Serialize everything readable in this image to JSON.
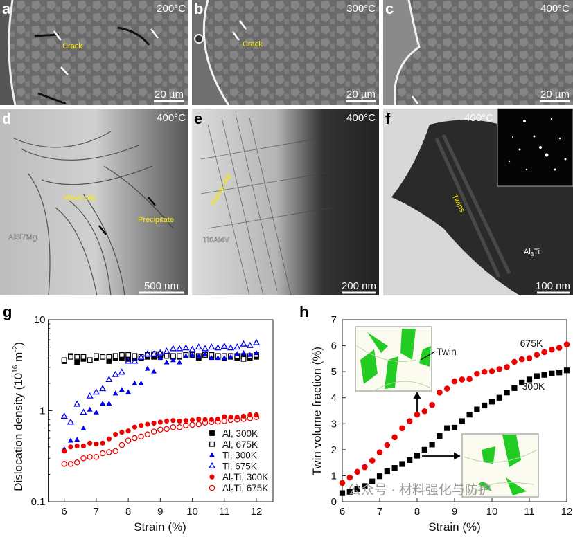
{
  "panels": {
    "a": {
      "letter": "a",
      "temp": "200°C",
      "annotation": "Crack",
      "scale": "20 µm"
    },
    "b": {
      "letter": "b",
      "temp": "300°C",
      "annotation": "Crack",
      "scale": "20 µm"
    },
    "c": {
      "letter": "c",
      "temp": "400°C",
      "scale": "20 µm"
    },
    "d": {
      "letter": "d",
      "temp": "400°C",
      "annotation1": "Wavy slip",
      "annotation2": "Precipitate",
      "material": "AlSi7Mg",
      "scale": "500 nm"
    },
    "e": {
      "letter": "e",
      "temp": "400°C",
      "annotation": "Planar slip",
      "material": "Ti6Al4V",
      "scale": "200 nm"
    },
    "f": {
      "letter": "f",
      "temp": "400°C",
      "annotation": "Twins",
      "material": "Al3Ti",
      "scale": "100 nm"
    }
  },
  "watermark": "公众号 · 材料强化与防护",
  "chart_data": [
    {
      "panel": "g",
      "type": "scatter",
      "xlabel": "Strain (%)",
      "ylabel": "Dislocation density (10^16 m^-2)",
      "yscale": "log",
      "xlim": [
        5.5,
        12.5
      ],
      "ylim": [
        0.1,
        10
      ],
      "xticks": [
        "6",
        "7",
        "8",
        "9",
        "10",
        "11",
        "12"
      ],
      "yticks": [
        "0.1",
        "1",
        "10"
      ],
      "legend": "bottom-right",
      "x": [
        6,
        6.2,
        6.4,
        6.6,
        6.8,
        7,
        7.2,
        7.4,
        7.6,
        7.8,
        8,
        8.2,
        8.4,
        8.6,
        8.8,
        9,
        9.2,
        9.4,
        9.6,
        9.8,
        10,
        10.2,
        10.4,
        10.6,
        10.8,
        11,
        11.2,
        11.4,
        11.6,
        11.8,
        12
      ],
      "series": [
        {
          "name": "Al, 300K",
          "marker": "square",
          "filled": true,
          "color": "#000000",
          "values": [
            3.5,
            4.0,
            3.4,
            3.7,
            3.6,
            3.8,
            3.9,
            3.5,
            3.8,
            3.8,
            3.7,
            3.8,
            3.8,
            3.9,
            3.9,
            4.0,
            4.0,
            3.9,
            3.9,
            4.1,
            4.1,
            3.8,
            4.1,
            3.9,
            3.9,
            3.8,
            3.9,
            3.8,
            4.0,
            3.8,
            3.9
          ]
        },
        {
          "name": "Al, 675K",
          "marker": "square",
          "filled": false,
          "color": "#000000",
          "values": [
            3.6,
            3.9,
            3.9,
            3.9,
            3.6,
            4.0,
            3.9,
            3.9,
            4.0,
            4.1,
            4.1,
            4.0,
            3.9,
            4.1,
            4.2,
            4.2,
            4.0,
            4.0,
            4.0,
            4.1,
            4.1,
            4.0,
            4.1,
            4.1,
            4.0,
            4.0,
            4.0,
            4.0,
            3.7,
            4.0,
            4.1
          ]
        },
        {
          "name": "Ti, 300K",
          "marker": "triangle",
          "filled": true,
          "color": "#0000ee",
          "values": [
            0.38,
            0.47,
            0.48,
            0.64,
            1.03,
            0.96,
            1.2,
            1.2,
            1.55,
            1.7,
            1.6,
            2.0,
            2.0,
            2.9,
            2.7,
            3.8,
            3.4,
            3.6,
            3.4,
            4.0,
            4.1,
            4.0,
            4.2,
            3.8,
            3.8,
            3.8,
            3.9,
            4.2,
            4.3,
            4.1,
            4.3
          ]
        },
        {
          "name": "Ti, 675K",
          "marker": "triangle",
          "filled": false,
          "color": "#0000ee",
          "values": [
            0.87,
            0.75,
            1.18,
            0.96,
            1.45,
            1.6,
            1.75,
            2.2,
            2.5,
            2.65,
            3.5,
            3.5,
            3.85,
            4.2,
            4.2,
            4.3,
            4.5,
            4.8,
            4.8,
            4.9,
            4.7,
            5.0,
            4.8,
            5.0,
            4.9,
            5.1,
            4.9,
            5.0,
            5.4,
            5.2,
            5.6
          ]
        },
        {
          "name": "Al3Ti, 300K",
          "marker": "circle",
          "filled": true,
          "color": "#ee0000",
          "values": [
            0.36,
            0.4,
            0.41,
            0.41,
            0.44,
            0.43,
            0.44,
            0.49,
            0.55,
            0.58,
            0.6,
            0.66,
            0.69,
            0.71,
            0.73,
            0.75,
            0.77,
            0.78,
            0.77,
            0.78,
            0.79,
            0.81,
            0.8,
            0.8,
            0.81,
            0.86,
            0.85,
            0.85,
            0.87,
            0.9,
            0.9
          ]
        },
        {
          "name": "Al3Ti, 675K",
          "marker": "circle",
          "filled": false,
          "color": "#ee0000",
          "values": [
            0.26,
            0.26,
            0.27,
            0.3,
            0.31,
            0.31,
            0.34,
            0.35,
            0.36,
            0.42,
            0.47,
            0.5,
            0.52,
            0.55,
            0.59,
            0.62,
            0.63,
            0.66,
            0.66,
            0.69,
            0.7,
            0.71,
            0.74,
            0.75,
            0.76,
            0.77,
            0.79,
            0.8,
            0.81,
            0.83,
            0.85
          ]
        }
      ]
    },
    {
      "panel": "h",
      "type": "scatter",
      "xlabel": "Strain (%)",
      "ylabel": "Twin volume fraction (%)",
      "xlim": [
        6,
        12
      ],
      "ylim": [
        0,
        7
      ],
      "xticks": [
        "6",
        "7",
        "8",
        "9",
        "10",
        "11",
        "12"
      ],
      "yticks": [
        "0",
        "1",
        "2",
        "3",
        "4",
        "5",
        "6",
        "7"
      ],
      "inset_label": "Twin",
      "x": [
        6,
        6.2,
        6.4,
        6.6,
        6.8,
        7,
        7.2,
        7.4,
        7.6,
        7.8,
        8,
        8.2,
        8.4,
        8.6,
        8.8,
        9,
        9.2,
        9.4,
        9.6,
        9.8,
        10,
        10.2,
        10.4,
        10.6,
        10.8,
        11,
        11.2,
        11.4,
        11.6,
        11.8,
        12
      ],
      "series": [
        {
          "name": "675K",
          "marker": "circle",
          "filled": true,
          "color": "#ee0000",
          "values": [
            0.72,
            0.93,
            1.15,
            1.33,
            1.58,
            1.9,
            2.18,
            2.48,
            2.83,
            3.1,
            3.35,
            3.48,
            3.72,
            4.2,
            4.35,
            4.63,
            4.7,
            4.72,
            4.92,
            5.0,
            5.02,
            5.1,
            5.18,
            5.38,
            5.48,
            5.52,
            5.65,
            5.75,
            5.85,
            5.92,
            6.05
          ]
        },
        {
          "name": "300K",
          "marker": "square",
          "filled": true,
          "color": "#000000",
          "values": [
            0.33,
            0.38,
            0.48,
            0.6,
            0.78,
            0.98,
            1.17,
            1.3,
            1.45,
            1.6,
            1.77,
            2.0,
            2.2,
            2.53,
            2.83,
            2.85,
            3.1,
            3.35,
            3.55,
            3.7,
            3.85,
            4.0,
            4.2,
            4.37,
            4.58,
            4.7,
            4.83,
            4.88,
            4.93,
            4.97,
            5.05
          ]
        }
      ]
    }
  ]
}
